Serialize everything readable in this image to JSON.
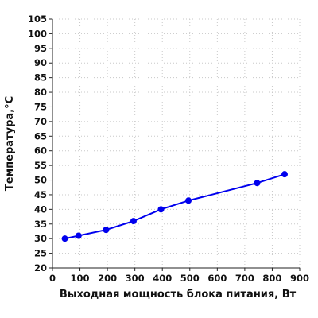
{
  "chart_data": {
    "type": "line",
    "title": "",
    "xlabel": "Выходная мощность блока питания, Вт",
    "ylabel": "Температура,°С",
    "xlim": [
      0,
      900
    ],
    "ylim": [
      20,
      105
    ],
    "xticks": [
      0,
      100,
      200,
      300,
      400,
      500,
      600,
      700,
      800,
      900
    ],
    "yticks": [
      20,
      25,
      30,
      35,
      40,
      45,
      50,
      55,
      60,
      65,
      70,
      75,
      80,
      85,
      90,
      95,
      100,
      105
    ],
    "grid": true,
    "series": [
      {
        "color": "#0000ee",
        "x": [
          45,
          95,
          195,
          295,
          395,
          495,
          745,
          845
        ],
        "y": [
          30,
          31,
          33,
          36,
          40,
          43,
          49,
          52
        ]
      }
    ]
  }
}
